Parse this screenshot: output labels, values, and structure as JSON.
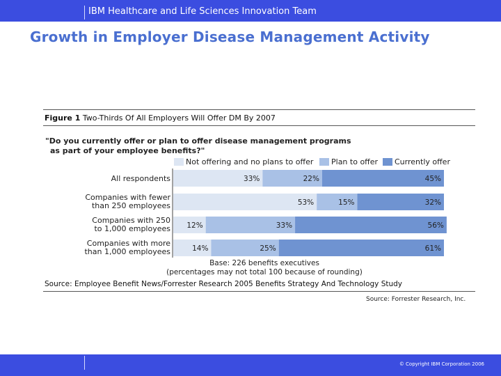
{
  "header": {
    "team": "IBM Healthcare and Life Sciences Innovation Team"
  },
  "slide": {
    "title": "Growth in Employer Disease Management Activity"
  },
  "footer": {
    "copyright": "© Copyright IBM Corporation 2006"
  },
  "figure": {
    "label": "Figure 1",
    "title_rest": "Two-Thirds Of All Employers Will Offer DM By 2007",
    "question_line1": "\"Do you currently offer or plan to offer disease management programs",
    "question_line2": "as part of your employee benefits?\"",
    "source": "Source: Employee Benefit News/Forrester Research 2005 Benefits Strategy And Technology Study",
    "credit": "Source: Forrester Research, Inc."
  },
  "chart_data": {
    "type": "bar",
    "orientation": "horizontal",
    "stacked": true,
    "categories": [
      [
        "All respondents"
      ],
      [
        "Companies with fewer",
        "than 250 employees"
      ],
      [
        "Companies with 250",
        "to 1,000 employees"
      ],
      [
        "Companies with more",
        "than 1,000 employees"
      ]
    ],
    "series": [
      {
        "name": "Not offering and no plans to offer",
        "color": "#dde6f3",
        "values": [
          33,
          53,
          12,
          14
        ],
        "labels": [
          "33%",
          "53%",
          "12%",
          "14%"
        ]
      },
      {
        "name": "Plan to offer",
        "color": "#a9c1e6",
        "values": [
          22,
          15,
          33,
          25
        ],
        "labels": [
          "22%",
          "15%",
          "33%",
          "25%"
        ]
      },
      {
        "name": "Currently offer",
        "color": "#6f93d1",
        "values": [
          45,
          32,
          56,
          61
        ],
        "labels": [
          "45%",
          "32%",
          "56%",
          "61%"
        ]
      }
    ],
    "xlim": [
      0,
      100
    ],
    "base_note": [
      "Base: 226 benefits executives",
      "(percentages may not total 100 because of rounding)"
    ]
  }
}
